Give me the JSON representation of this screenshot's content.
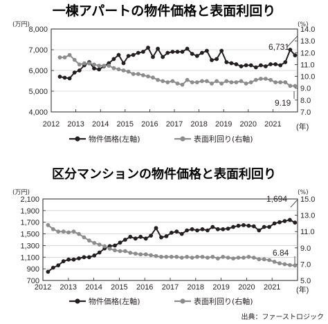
{
  "chart_data": [
    {
      "type": "line",
      "title": "一棟アパートの物件価格と表面利回り",
      "left_unit": "(万円)",
      "right_unit": "(%)",
      "left_ticks": [
        "8,000",
        "7,000",
        "6,000",
        "5,000",
        "4,000"
      ],
      "right_ticks": [
        "14.0",
        "13.0",
        "12.0",
        "11.0",
        "10.0",
        "9.0",
        "8.0",
        "7.0"
      ],
      "ylim_left": [
        4000,
        8000
      ],
      "ylim_right": [
        7.0,
        14.0
      ],
      "x_ticks": [
        "2012",
        "2013",
        "2014",
        "2015",
        "2016",
        "2017",
        "2018",
        "2019",
        "2020",
        "2021"
      ],
      "x_suffix": "(年)",
      "callout_price": "6,731",
      "callout_yield": "9.19",
      "series": [
        {
          "name": "物件価格(左軸)",
          "axis": "left",
          "color": "#231f20",
          "values": [
            5700,
            5650,
            5620,
            5900,
            6000,
            6250,
            6400,
            6100,
            6050,
            6200,
            6350,
            6550,
            6750,
            6350,
            6700,
            6750,
            6850,
            6900,
            7100,
            6650,
            7050,
            6650,
            6850,
            6900,
            6900,
            6900,
            7050,
            6800,
            6700,
            6850,
            6950,
            6500,
            6550,
            6950,
            6400,
            6350,
            6300,
            6200,
            6250,
            6250,
            6150,
            6250,
            6200,
            6300,
            6300,
            6250,
            6400,
            7000,
            6731
          ]
        },
        {
          "name": "表面利回り(右軸)",
          "axis": "right",
          "color": "#8c8c8c",
          "values": [
            11.6,
            11.6,
            11.8,
            11.4,
            11.0,
            11.1,
            11.1,
            11.0,
            10.9,
            10.9,
            10.9,
            10.7,
            10.6,
            10.5,
            10.4,
            10.2,
            10.2,
            10.1,
            10.0,
            9.9,
            9.7,
            9.6,
            9.5,
            9.6,
            9.4,
            9.3,
            9.7,
            9.5,
            9.5,
            9.6,
            9.6,
            9.4,
            9.6,
            9.4,
            9.6,
            9.5,
            9.5,
            9.6,
            9.4,
            9.5,
            9.7,
            9.8,
            9.8,
            9.7,
            9.5,
            9.5,
            9.5,
            9.2,
            9.19
          ]
        }
      ]
    },
    {
      "type": "line",
      "title": "区分マンションの物件価格と表面利回り",
      "left_unit": "(万円)",
      "right_unit": "(%)",
      "left_ticks": [
        "2,100",
        "1,900",
        "1,700",
        "1,500",
        "1,300",
        "1,100",
        "900",
        "700"
      ],
      "right_ticks": [
        "15.0",
        "13.0",
        "11.0",
        "9.0",
        "7.0",
        "5.0"
      ],
      "ylim_left": [
        700,
        2100
      ],
      "ylim_right": [
        5.0,
        15.0
      ],
      "x_ticks": [
        "2012",
        "2013",
        "2014",
        "2015",
        "2016",
        "2017",
        "2018",
        "2019",
        "2020",
        "2021"
      ],
      "x_suffix": "(年)",
      "callout_price": "1,694",
      "callout_yield": "6.84",
      "series": [
        {
          "name": "物件価格(左軸)",
          "axis": "left",
          "color": "#231f20",
          "values": [
            850,
            920,
            960,
            1030,
            1060,
            1060,
            1080,
            1100,
            1100,
            1130,
            1180,
            1250,
            1290,
            1300,
            1350,
            1400,
            1450,
            1420,
            1450,
            1420,
            1470,
            1600,
            1440,
            1460,
            1520,
            1540,
            1500,
            1560,
            1580,
            1560,
            1580,
            1560,
            1620,
            1580,
            1580,
            1590,
            1620,
            1640,
            1650,
            1640,
            1630,
            1560,
            1620,
            1620,
            1680,
            1700,
            1720,
            1740,
            1694
          ]
        },
        {
          "name": "表面利回り(右軸)",
          "axis": "right",
          "color": "#8c8c8c",
          "values": [
            11.8,
            11.3,
            11.0,
            11.0,
            10.9,
            11.0,
            10.7,
            10.3,
            9.9,
            9.6,
            9.4,
            9.2,
            8.9,
            8.7,
            8.6,
            8.6,
            8.4,
            8.3,
            8.2,
            8.2,
            8.1,
            8.0,
            7.9,
            7.9,
            7.9,
            7.9,
            7.8,
            7.9,
            7.8,
            7.9,
            7.9,
            7.8,
            7.9,
            7.7,
            7.9,
            7.8,
            7.7,
            7.8,
            7.8,
            7.9,
            7.8,
            7.6,
            7.6,
            7.5,
            7.3,
            7.1,
            7.0,
            6.9,
            6.84
          ]
        }
      ]
    }
  ],
  "source": "出典：ファーストロジック"
}
